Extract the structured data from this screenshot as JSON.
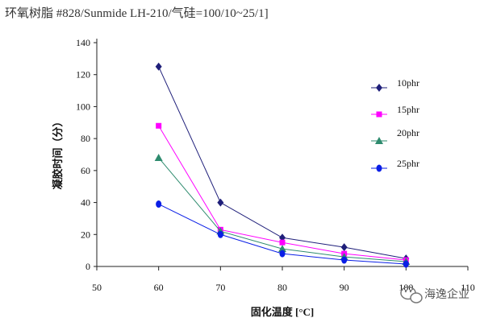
{
  "chart_data": {
    "type": "line",
    "title": "环氧树脂 #828/Sunmide LH-210/气硅=100/10~25/1]",
    "xlabel": "固化温度 [°C]",
    "ylabel": "凝胶时间（分）",
    "xlim": [
      50,
      110
    ],
    "ylim": [
      0,
      140
    ],
    "x_ticks": [
      "50",
      "60",
      "70",
      "80",
      "90",
      "100",
      "110"
    ],
    "y_ticks": [
      "0",
      "20",
      "40",
      "60",
      "80",
      "100",
      "120",
      "140"
    ],
    "x": [
      60,
      70,
      80,
      90,
      100
    ],
    "grid": false,
    "legend_position": "right",
    "series": [
      {
        "name": "10phr",
        "values": [
          125,
          40,
          18,
          12,
          5
        ],
        "color": "#1f1f7a",
        "marker": "diamond"
      },
      {
        "name": "15phr",
        "values": [
          88,
          23,
          15,
          8,
          4
        ],
        "color": "#ff00ff",
        "marker": "square"
      },
      {
        "name": "20phr",
        "values": [
          68,
          22,
          11,
          6,
          3
        ],
        "color": "#2e8b6e",
        "marker": "triangle"
      },
      {
        "name": "25phr",
        "values": [
          39,
          20,
          8,
          4,
          1.5
        ],
        "color": "#0a1ee6",
        "marker": "circle"
      }
    ]
  },
  "watermark": {
    "text": "海逸企业",
    "icon": "wechat-icon"
  }
}
